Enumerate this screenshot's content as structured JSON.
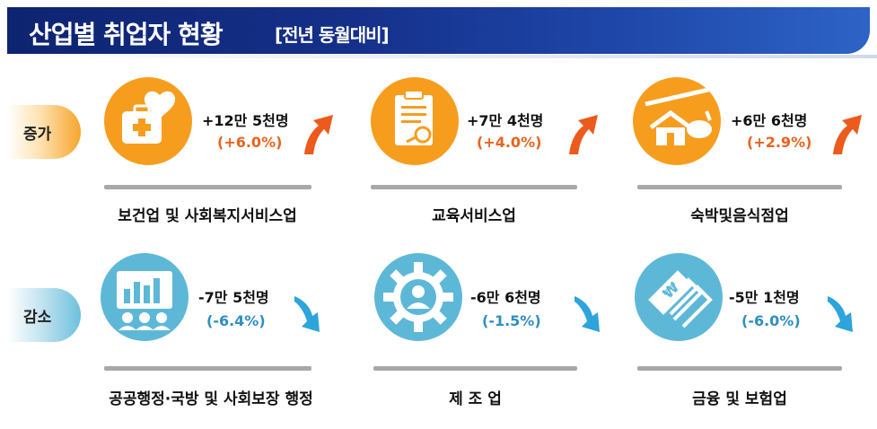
{
  "header": {
    "title": "산업별 취업자 현황",
    "subtitle": "[전년 동월대비]"
  },
  "tabs": {
    "increase": "증가",
    "decrease": "감소"
  },
  "colors": {
    "increase": "#f79d1e",
    "increase_text": "#e8641e",
    "decrease": "#5db8d8",
    "decrease_text": "#2e8fc0",
    "header": "#15308a"
  },
  "chart_data": {
    "type": "table",
    "title": "산업별 취업자 현황",
    "subtitle": "[전년 동월대비]",
    "increase": [
      {
        "category": "보건업 및 사회복지서비스업",
        "change": "+12만 5천명",
        "pct": "(+6.0%)",
        "change_value": 125000,
        "pct_value": 6.0,
        "icon": "medical-kit-heart-icon"
      },
      {
        "category": "교육서비스업",
        "change": "+7만 4천명",
        "pct": "(+4.0%)",
        "change_value": 74000,
        "pct_value": 4.0,
        "icon": "clipboard-document-icon"
      },
      {
        "category": "숙박및음식점업",
        "change": "+6만 6천명",
        "pct": "(+2.9%)",
        "change_value": 66000,
        "pct_value": 2.9,
        "icon": "house-food-icon"
      }
    ],
    "decrease": [
      {
        "category": "공공행정·국방 및 사회보장 행정",
        "change": "-7만 5천명",
        "pct": "(-6.4%)",
        "change_value": -75000,
        "pct_value": -6.4,
        "icon": "presentation-board-icon"
      },
      {
        "category": "제 조 업",
        "change": "-6만 6천명",
        "pct": "(-1.5%)",
        "change_value": -66000,
        "pct_value": -1.5,
        "icon": "gear-worker-icon"
      },
      {
        "category": "금융 및 보험업",
        "change": "-5만 1천명",
        "pct": "(-6.0%)",
        "change_value": -51000,
        "pct_value": -6.0,
        "icon": "banknotes-won-icon"
      }
    ]
  }
}
